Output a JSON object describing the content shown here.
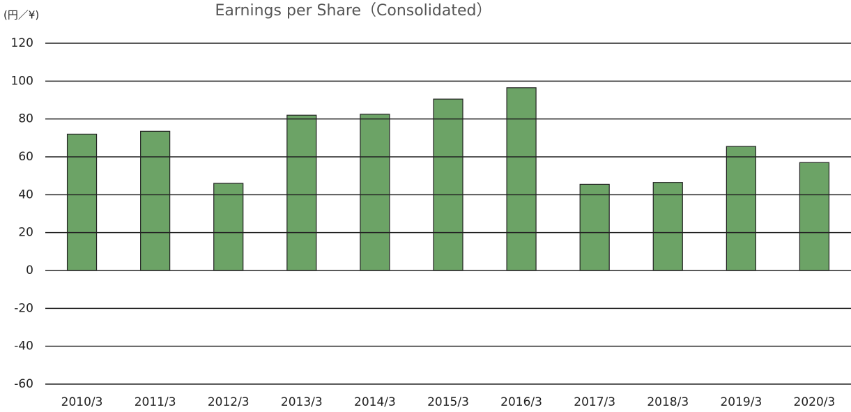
{
  "chart_data": {
    "type": "bar",
    "title": "Earnings per Share（Consolidated）",
    "y_label": "(円／¥)",
    "categories": [
      "2010/3",
      "2011/3",
      "2012/3",
      "2013/3",
      "2014/3",
      "2015/3",
      "2016/3",
      "2017/3",
      "2018/3",
      "2019/3",
      "2020/3"
    ],
    "values": [
      72,
      73.5,
      46,
      82,
      82.5,
      90.5,
      96.5,
      45.5,
      46.5,
      65.5,
      57
    ],
    "color": "#6ca366",
    "ylim": [
      -60,
      120
    ],
    "yticks": [
      -60,
      -40,
      -20,
      0,
      20,
      40,
      60,
      80,
      100,
      120
    ],
    "grid": true
  }
}
